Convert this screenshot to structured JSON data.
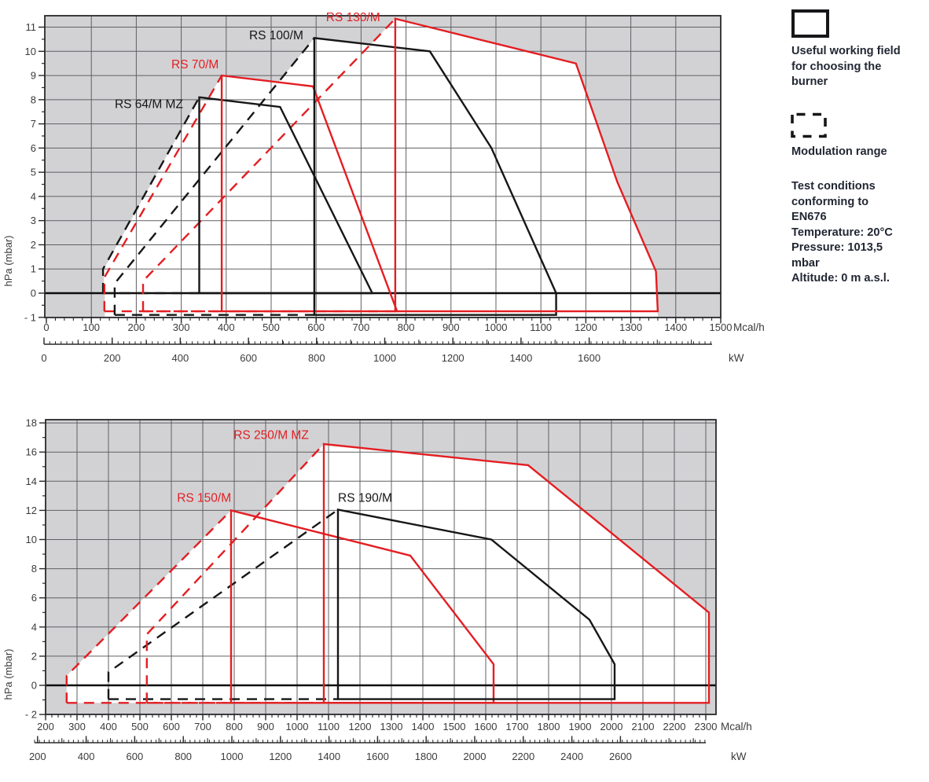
{
  "colors": {
    "red": "#e31e22",
    "black": "#161616",
    "grid": "#606064",
    "plot_bg": "#d2d2d4",
    "frame": "#2a2a2c",
    "zero_line": "#0c0c0c",
    "axis_text": "#3b3b3d",
    "legend_text": "#222733",
    "white": "#ffffff"
  },
  "legend": {
    "working_field": {
      "icon": "solid-rectangle-icon",
      "label_lines": [
        "Useful working field",
        "for choosing the",
        "burner"
      ]
    },
    "modulation": {
      "icon": "dashed-rectangle-icon",
      "label": "Modulation range"
    },
    "test_conditions_lines": [
      "Test conditions",
      "conforming to",
      "EN676",
      "Temperature: 20°C",
      "Pressure: 1013,5",
      "mbar",
      "Altitude: 0 m a.s.l."
    ]
  },
  "chart_data": [
    {
      "id": "top",
      "type": "area",
      "title": "",
      "ylabel": "hPa (mbar)",
      "xlim": [
        0,
        1500
      ],
      "ylim": [
        -1,
        11.5
      ],
      "grid": true,
      "x_axis_primary": {
        "label": "Mcal/h",
        "ticks": [
          0,
          100,
          200,
          300,
          400,
          500,
          600,
          700,
          800,
          900,
          1000,
          1100,
          1200,
          1300,
          1400,
          1500
        ]
      },
      "x_axis_secondary": {
        "label": "kW",
        "ticks": [
          0,
          200,
          400,
          600,
          800,
          1000,
          1200,
          1400,
          1600
        ]
      },
      "y_axis": {
        "values": [
          11,
          10,
          9,
          8,
          7,
          6,
          5,
          4,
          3,
          2,
          1,
          0,
          -1
        ],
        "labels": [
          "11",
          "10",
          "9",
          "8",
          "7",
          "6",
          "5",
          "4",
          "3",
          "2",
          "1",
          "0",
          "- 1"
        ]
      },
      "envelope": [
        [
          128,
          0
        ],
        [
          128,
          1.0
        ],
        [
          340,
          8.1
        ],
        [
          360,
          8.06
        ],
        [
          390,
          9.0
        ],
        [
          516,
          8.72
        ],
        [
          596,
          10.55
        ],
        [
          721,
          10.28
        ],
        [
          776,
          11.35
        ],
        [
          1178,
          9.5
        ],
        [
          1270,
          4.6
        ],
        [
          1356,
          0.9
        ],
        [
          1360,
          -0.97
        ],
        [
          130,
          -0.97
        ],
        [
          130,
          0
        ]
      ],
      "series": [
        {
          "name": "RS 64/M MZ",
          "color": "black",
          "label_pos": [
            152,
            7.65
          ],
          "field": [
            [
              340,
              0
            ],
            [
              340,
              8.1
            ],
            [
              520,
              7.7
            ],
            [
              725,
              0
            ]
          ],
          "mod_lines": [
            [
              [
                126,
                0
              ],
              [
                126,
                1.0
              ],
              [
                340,
                8.1
              ]
            ],
            [
              [
                126,
                0
              ],
              [
                340,
                0
              ]
            ]
          ]
        },
        {
          "name": "RS 70/M",
          "color": "red",
          "label_pos": [
            278,
            9.3
          ],
          "field": [
            [
              390,
              -0.75
            ],
            [
              390,
              9.0
            ],
            [
              593,
              8.55
            ],
            [
              780,
              -0.75
            ]
          ],
          "mod_lines": [
            [
              [
                129,
                -0.75
              ],
              [
                129,
                0.65
              ],
              [
                390,
                9.0
              ]
            ],
            [
              [
                129,
                -0.75
              ],
              [
                390,
                -0.75
              ]
            ]
          ]
        },
        {
          "name": "RS 100/M",
          "color": "black",
          "label_pos": [
            451,
            10.5
          ],
          "field": [
            [
              596,
              -0.9
            ],
            [
              596,
              10.55
            ],
            [
              853,
              10.0
            ],
            [
              990,
              6.0
            ],
            [
              1134,
              0
            ],
            [
              1134,
              -0.9
            ]
          ],
          "mod_lines": [
            [
              [
                152,
                -0.9
              ],
              [
                152,
                0.4
              ],
              [
                596,
                10.55
              ]
            ],
            [
              [
                152,
                -0.9
              ],
              [
                596,
                -0.9
              ]
            ]
          ]
        },
        {
          "name": "RS 130/M",
          "color": "red",
          "label_pos": [
            622,
            11.25
          ],
          "field": [
            [
              776,
              -0.75
            ],
            [
              776,
              11.35
            ],
            [
              1178,
              9.5
            ],
            [
              1270,
              4.6
            ],
            [
              1356,
              0.9
            ],
            [
              1360,
              -0.75
            ]
          ],
          "mod_lines": [
            [
              [
                215,
                -0.75
              ],
              [
                215,
                0.5
              ],
              [
                776,
                11.35
              ]
            ],
            [
              [
                215,
                -0.75
              ],
              [
                776,
                -0.75
              ]
            ]
          ]
        }
      ]
    },
    {
      "id": "bottom",
      "type": "area",
      "title": "",
      "ylabel": "hPa (mbar)",
      "xlim": [
        200,
        2300
      ],
      "ylim": [
        -2,
        18.2
      ],
      "grid": true,
      "x_axis_primary": {
        "label": "Mcal/h",
        "ticks": [
          200,
          300,
          400,
          500,
          600,
          700,
          800,
          900,
          1000,
          1100,
          1200,
          1300,
          1400,
          1500,
          1600,
          1700,
          1800,
          1900,
          2000,
          2100,
          2200,
          2300
        ]
      },
      "x_axis_secondary": {
        "label": "kW",
        "ticks": [
          200,
          400,
          600,
          800,
          1000,
          1200,
          1400,
          1600,
          1800,
          2000,
          2200,
          2400,
          2600
        ]
      },
      "y_axis": {
        "values": [
          18,
          16,
          14,
          12,
          10,
          8,
          6,
          4,
          2,
          0,
          -2
        ],
        "labels": [
          "18",
          "16",
          "14",
          "12",
          "10",
          "8",
          "6",
          "4",
          "2",
          "0",
          "- 2"
        ]
      },
      "envelope": [
        [
          267,
          -1.2
        ],
        [
          267,
          0.65
        ],
        [
          790,
          12.0
        ],
        [
          870,
          11.57
        ],
        [
          1085,
          16.55
        ],
        [
          1735,
          15.1
        ],
        [
          2310,
          5.0
        ],
        [
          2310,
          -1.2
        ]
      ],
      "series": [
        {
          "name": "RS 150/M",
          "color": "red",
          "label_pos": [
            618,
            12.6
          ],
          "field": [
            [
              790,
              -1.2
            ],
            [
              790,
              12.0
            ],
            [
              1360,
              8.9
            ],
            [
              1625,
              1.45
            ],
            [
              1625,
              -1.2
            ]
          ],
          "mod_lines": [
            [
              [
                267,
                -1.2
              ],
              [
                267,
                0.65
              ],
              [
                790,
                12.0
              ]
            ],
            [
              [
                267,
                -1.2
              ],
              [
                790,
                -1.2
              ]
            ]
          ]
        },
        {
          "name": "RS 190/M",
          "color": "black",
          "label_pos": [
            1130,
            12.6
          ],
          "field": [
            [
              1130,
              -0.95
            ],
            [
              1130,
              12.05
            ],
            [
              1618,
              10.0
            ],
            [
              1930,
              4.5
            ],
            [
              2010,
              1.45
            ],
            [
              2010,
              -0.95
            ]
          ],
          "mod_lines": [
            [
              [
                400,
                -0.95
              ],
              [
                400,
                0.9
              ],
              [
                1130,
                12.05
              ]
            ],
            [
              [
                400,
                -0.95
              ],
              [
                1130,
                -0.95
              ]
            ]
          ]
        },
        {
          "name": "RS 250/M MZ",
          "color": "red",
          "label_pos": [
            798,
            16.9
          ],
          "field": [
            [
              1085,
              -1.2
            ],
            [
              1085,
              16.55
            ],
            [
              1735,
              15.1
            ],
            [
              2310,
              5.0
            ],
            [
              2310,
              -1.2
            ]
          ],
          "mod_lines": [
            [
              [
                522,
                -1.2
              ],
              [
                522,
                3.5
              ],
              [
                1085,
                16.55
              ]
            ],
            [
              [
                522,
                -1.2
              ],
              [
                1085,
                -1.2
              ]
            ]
          ]
        }
      ]
    }
  ]
}
